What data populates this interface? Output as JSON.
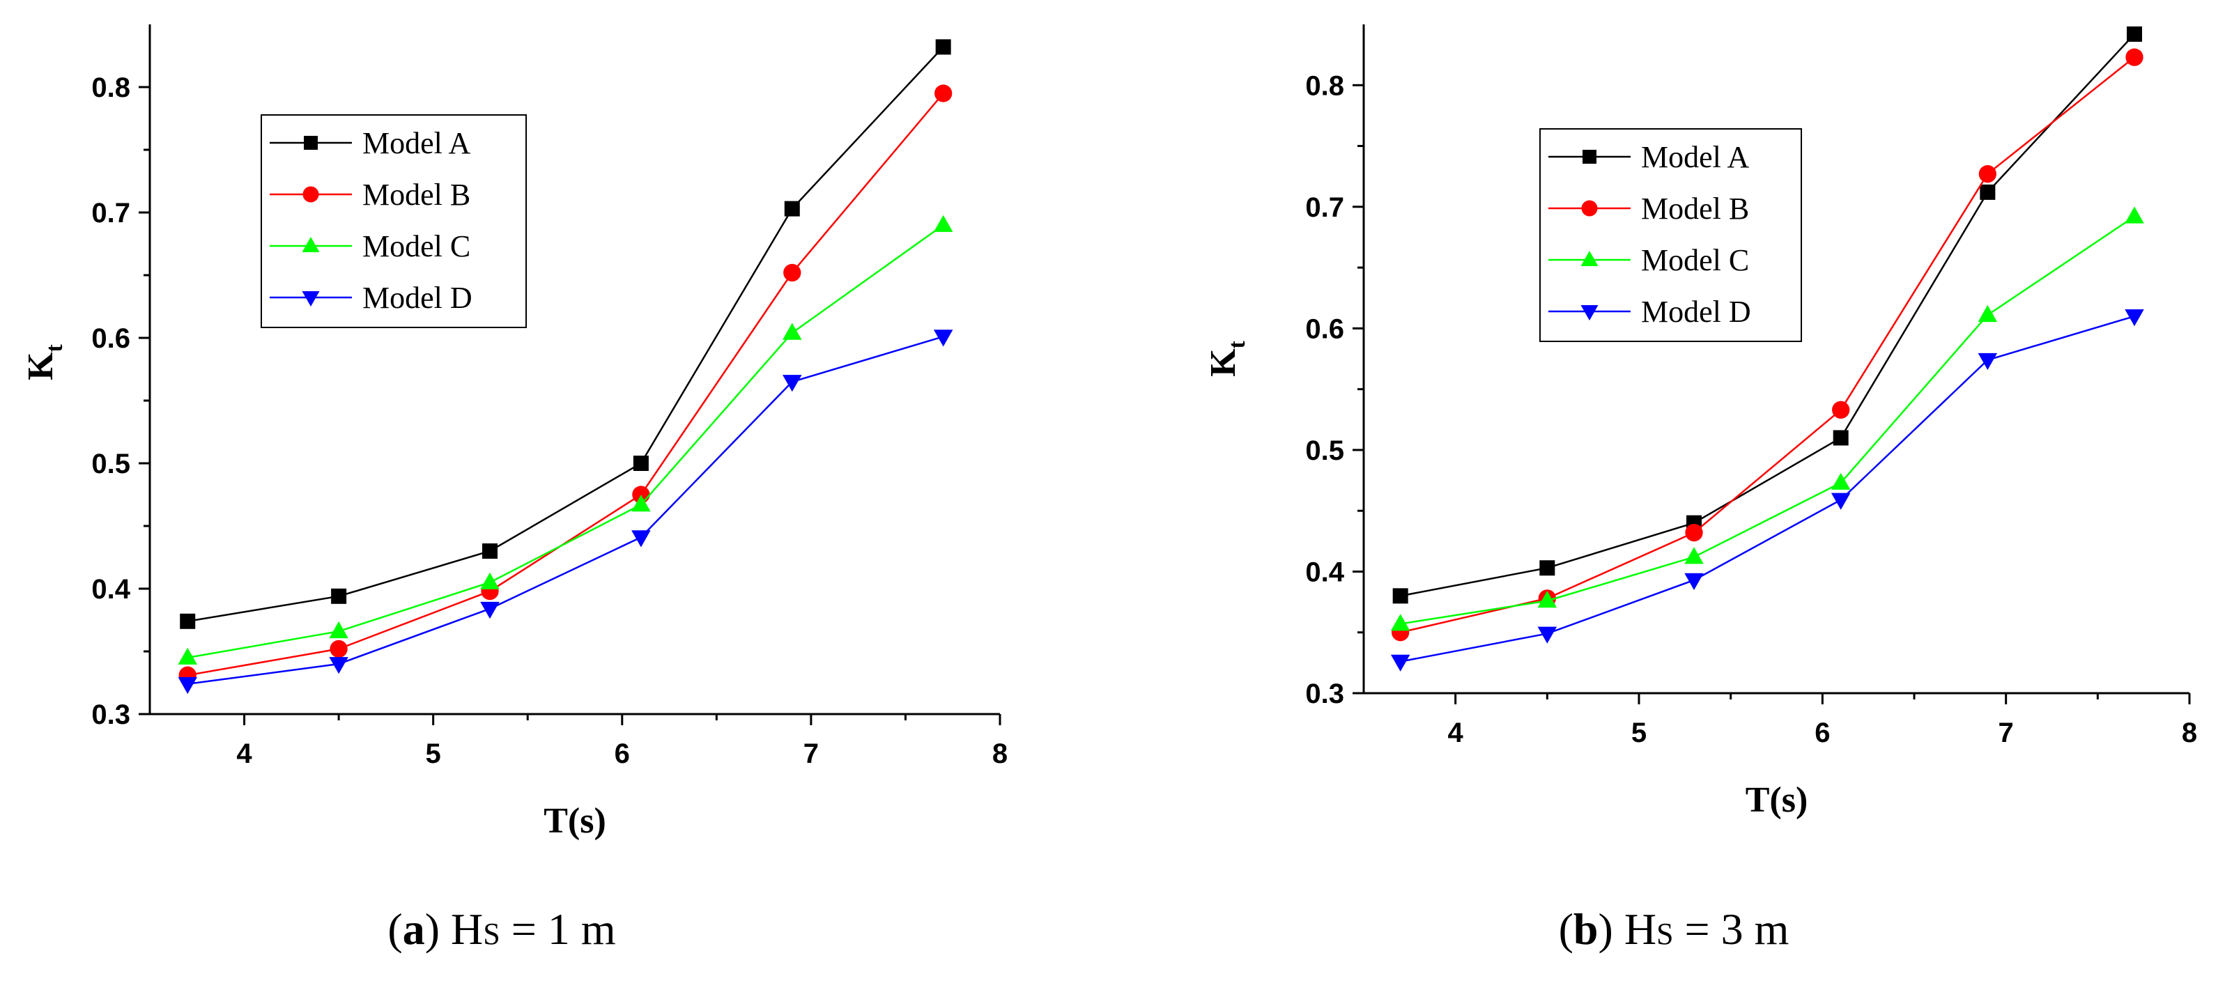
{
  "chart_data": [
    {
      "type": "line",
      "panel_label": "a",
      "caption_prefix": "(",
      "caption_suffix": ")",
      "caption_hs": "H",
      "caption_hs_sub": "S",
      "caption_value": " = 1 m",
      "xlabel": "T(s)",
      "ylabel": "K",
      "ylabel_sub": "t",
      "xlim": [
        3.5,
        8
      ],
      "ylim": [
        0.3,
        0.85
      ],
      "xticks": [
        4,
        5,
        6,
        7,
        8
      ],
      "xtick_labels": [
        "4",
        "5",
        "6",
        "7",
        "8"
      ],
      "yticks": [
        0.3,
        0.4,
        0.5,
        0.6,
        0.7,
        0.8
      ],
      "ytick_labels": [
        "0.3",
        "0.4",
        "0.5",
        "0.6",
        "0.7",
        "0.8"
      ],
      "x": [
        3.7,
        4.5,
        5.3,
        6.1,
        6.9,
        7.7
      ],
      "legend_position": "upper-left",
      "series": [
        {
          "name": "Model A",
          "color": "#000000",
          "marker": "square",
          "values": [
            0.374,
            0.394,
            0.43,
            0.5,
            0.703,
            0.832
          ]
        },
        {
          "name": "Model B",
          "color": "#ff0000",
          "marker": "circle",
          "values": [
            0.331,
            0.352,
            0.398,
            0.475,
            0.652,
            0.795
          ]
        },
        {
          "name": "Model C",
          "color": "#00ff00",
          "marker": "triangle-up",
          "values": [
            0.345,
            0.366,
            0.405,
            0.467,
            0.604,
            0.69
          ]
        },
        {
          "name": "Model D",
          "color": "#0000ff",
          "marker": "triangle-down",
          "values": [
            0.324,
            0.34,
            0.384,
            0.441,
            0.565,
            0.601
          ]
        }
      ]
    },
    {
      "type": "line",
      "panel_label": "b",
      "caption_prefix": "(",
      "caption_suffix": ")",
      "caption_hs": "H",
      "caption_hs_sub": "S",
      "caption_value": " = 3 m",
      "xlabel": "T(s)",
      "ylabel": "K",
      "ylabel_sub": "t",
      "xlim": [
        3.5,
        8
      ],
      "ylim": [
        0.3,
        0.85
      ],
      "xticks": [
        4,
        5,
        6,
        7,
        8
      ],
      "xtick_labels": [
        "4",
        "5",
        "6",
        "7",
        "8"
      ],
      "yticks": [
        0.3,
        0.4,
        0.5,
        0.6,
        0.7,
        0.8
      ],
      "ytick_labels": [
        "0.3",
        "0.4",
        "0.5",
        "0.6",
        "0.7",
        "0.8"
      ],
      "x": [
        3.7,
        4.5,
        5.3,
        6.1,
        6.9,
        7.7
      ],
      "legend_position": "upper-left",
      "series": [
        {
          "name": "Model A",
          "color": "#000000",
          "marker": "square",
          "values": [
            0.38,
            0.403,
            0.44,
            0.51,
            0.712,
            0.842
          ]
        },
        {
          "name": "Model B",
          "color": "#ff0000",
          "marker": "circle",
          "values": [
            0.35,
            0.378,
            0.432,
            0.533,
            0.727,
            0.823
          ]
        },
        {
          "name": "Model C",
          "color": "#00ff00",
          "marker": "triangle-up",
          "values": [
            0.357,
            0.376,
            0.412,
            0.473,
            0.611,
            0.692
          ]
        },
        {
          "name": "Model D",
          "color": "#0000ff",
          "marker": "triangle-down",
          "values": [
            0.326,
            0.349,
            0.393,
            0.459,
            0.574,
            0.61
          ]
        }
      ]
    }
  ]
}
